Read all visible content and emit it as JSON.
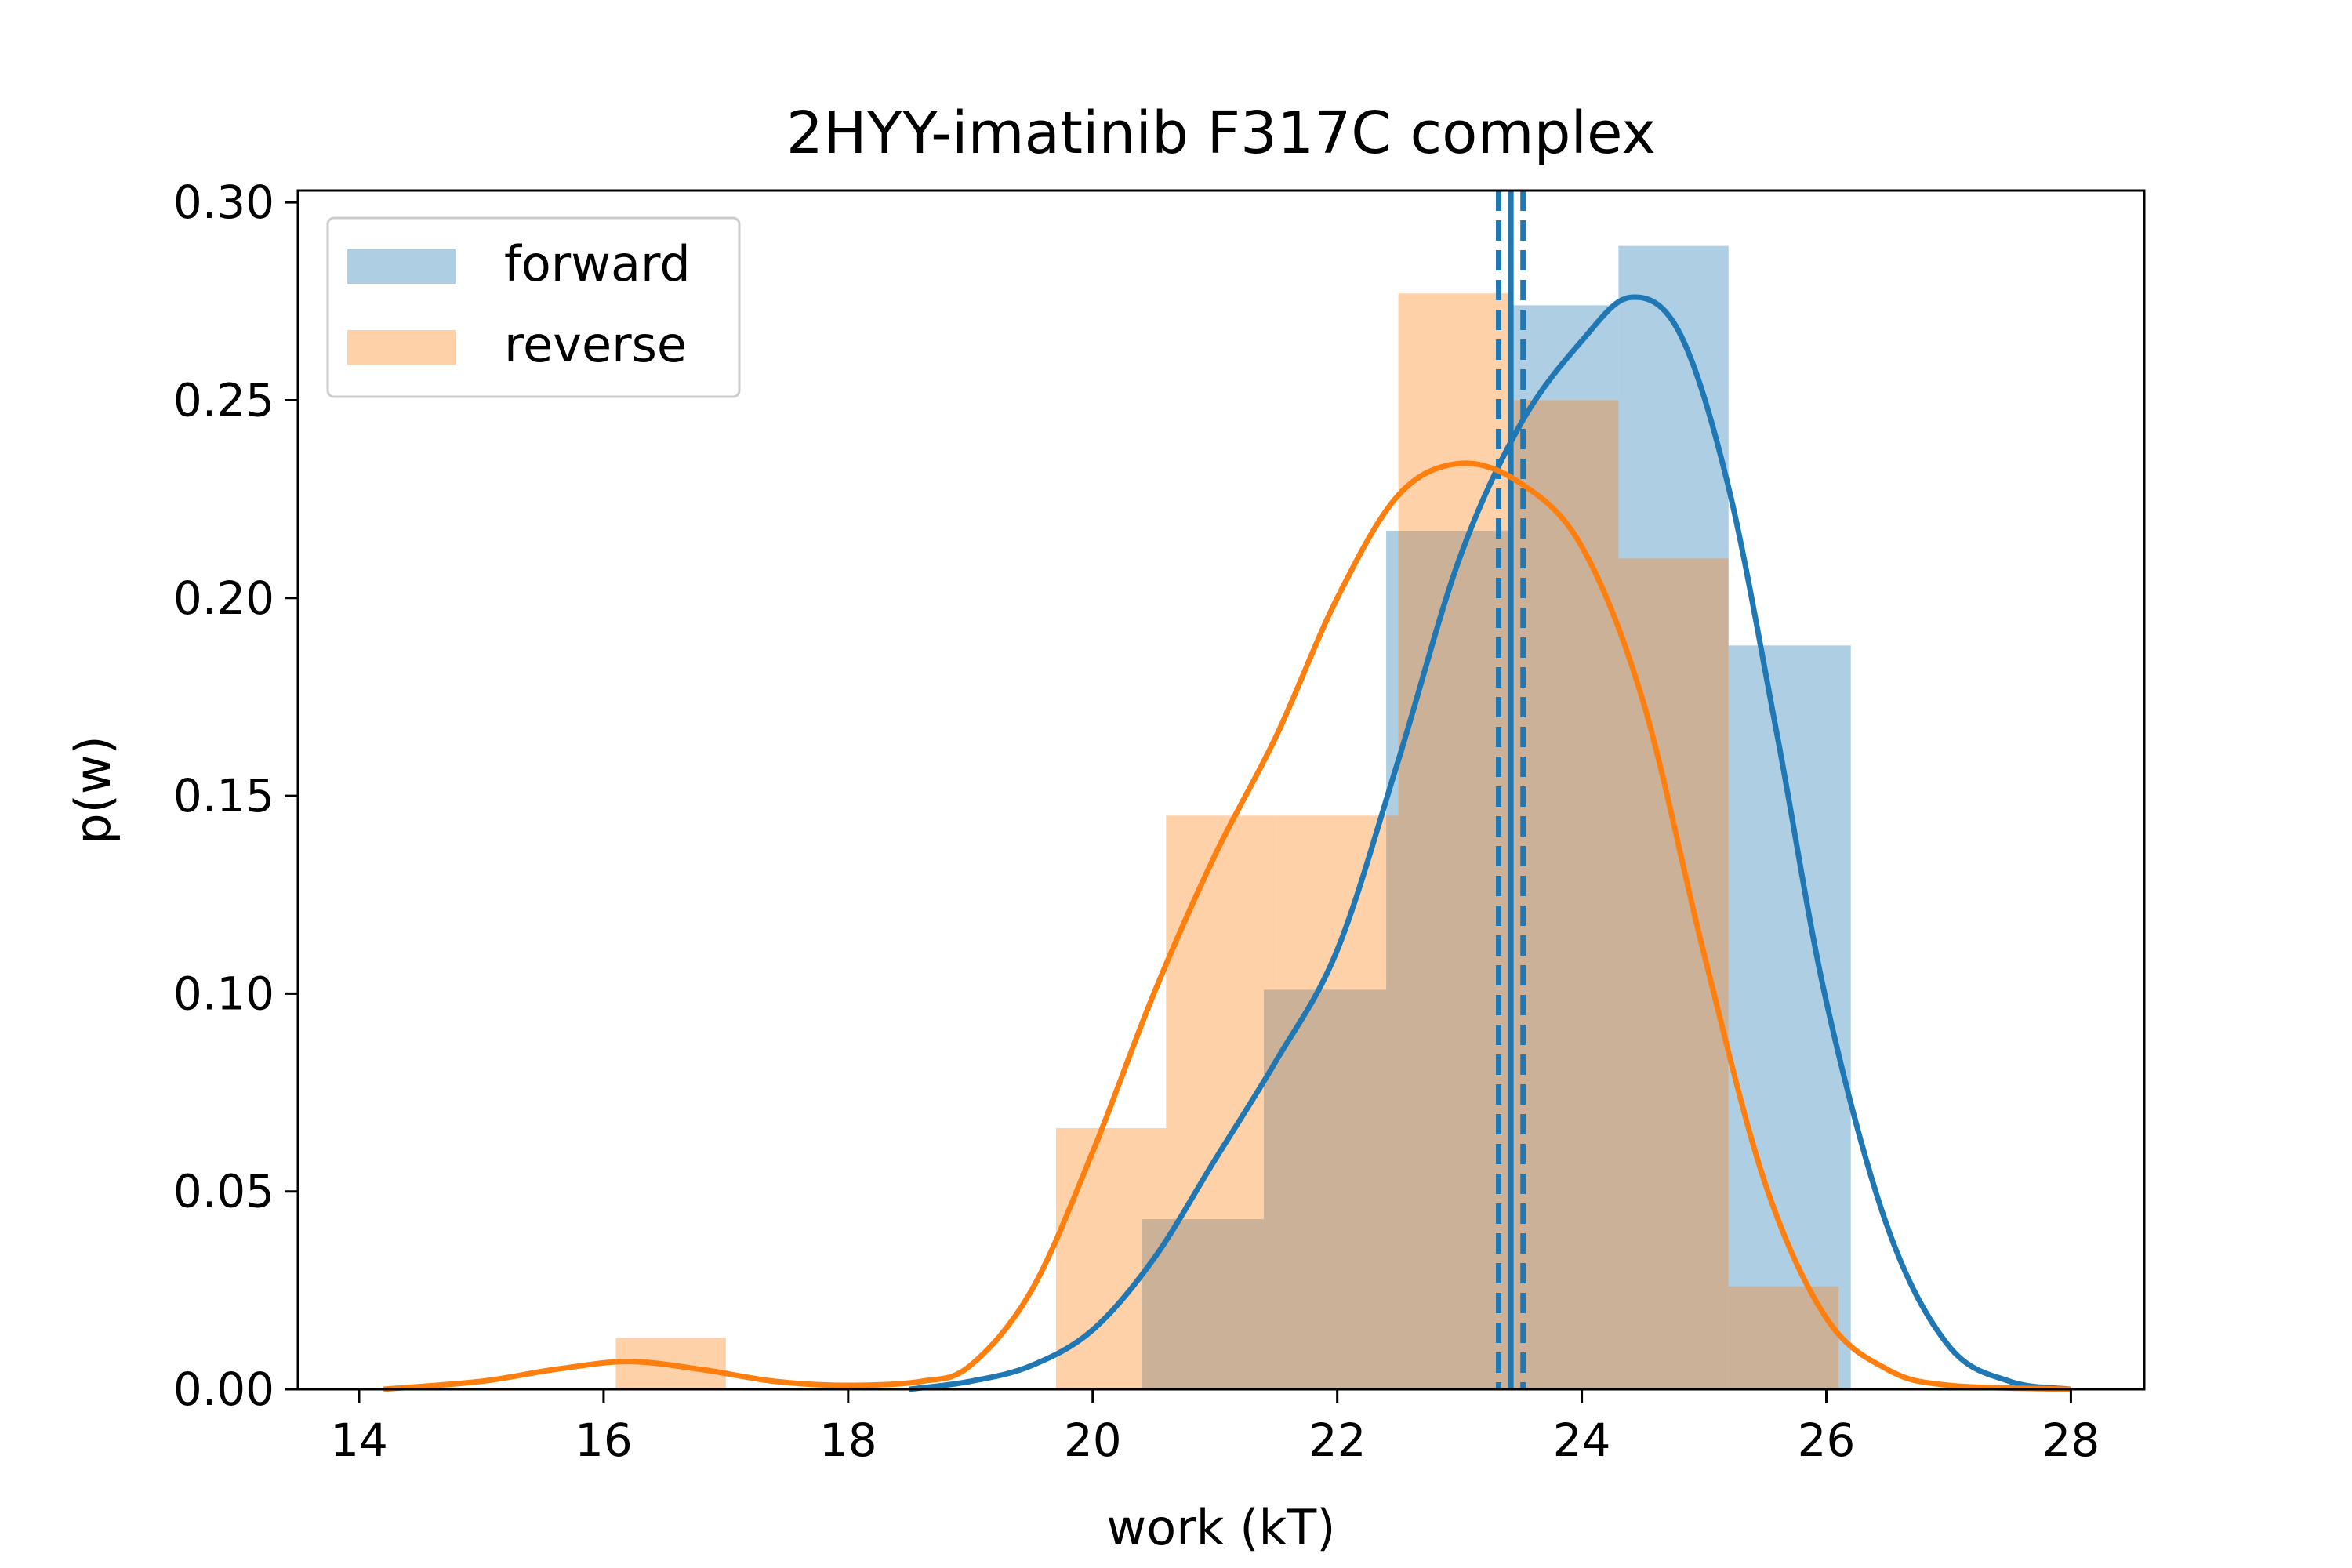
{
  "chart_data": {
    "type": "histogram",
    "title": "2HYY-imatinib F317C complex",
    "xlabel": "work (kT)",
    "ylabel": "p(w)",
    "xlim": [
      13.5,
      28.6
    ],
    "ylim": [
      0.0,
      0.303
    ],
    "xticks": [
      14,
      16,
      18,
      20,
      22,
      24,
      26,
      28
    ],
    "yticks": [
      0.0,
      0.05,
      0.1,
      0.15,
      0.2,
      0.25,
      0.3
    ],
    "xtick_labels": [
      "14",
      "16",
      "18",
      "20",
      "22",
      "24",
      "26",
      "28"
    ],
    "ytick_labels": [
      "0.00",
      "0.05",
      "0.10",
      "0.15",
      "0.20",
      "0.25",
      "0.30"
    ],
    "grid": false,
    "legend_position": "top-left",
    "series": [
      {
        "name": "forward",
        "color": "#1f77b4",
        "bar_color": "#adc9e1",
        "bins": [
          {
            "x0": 20.4,
            "x1": 21.4,
            "y": 0.043
          },
          {
            "x0": 21.4,
            "x1": 22.4,
            "y": 0.101
          },
          {
            "x0": 22.4,
            "x1": 23.4,
            "y": 0.217
          },
          {
            "x0": 23.4,
            "x1": 24.3,
            "y": 0.274
          },
          {
            "x0": 24.3,
            "x1": 25.2,
            "y": 0.289
          },
          {
            "x0": 25.2,
            "x1": 26.2,
            "y": 0.188
          }
        ],
        "kde": {
          "x": [
            18.5,
            19.0,
            19.5,
            20.0,
            20.5,
            21.0,
            21.5,
            22.0,
            22.5,
            23.0,
            23.5,
            24.0,
            24.4,
            24.8,
            25.2,
            25.6,
            26.0,
            26.5,
            27.0,
            27.5,
            28.0
          ],
          "y": [
            0.0,
            0.002,
            0.006,
            0.015,
            0.033,
            0.058,
            0.083,
            0.111,
            0.159,
            0.21,
            0.244,
            0.265,
            0.276,
            0.267,
            0.228,
            0.165,
            0.098,
            0.041,
            0.011,
            0.002,
            0.0
          ]
        },
        "vlines": [
          23.32,
          23.42,
          23.52
        ]
      },
      {
        "name": "reverse",
        "color": "#ff7f0e",
        "bar_color": "#fdca97",
        "bins": [
          {
            "x0": 16.1,
            "x1": 17.0,
            "y": 0.013
          },
          {
            "x0": 19.7,
            "x1": 20.6,
            "y": 0.066
          },
          {
            "x0": 20.6,
            "x1": 21.5,
            "y": 0.145
          },
          {
            "x0": 21.5,
            "x1": 22.5,
            "y": 0.145
          },
          {
            "x0": 22.5,
            "x1": 23.4,
            "y": 0.277
          },
          {
            "x0": 23.4,
            "x1": 24.3,
            "y": 0.25
          },
          {
            "x0": 24.3,
            "x1": 25.2,
            "y": 0.21
          },
          {
            "x0": 25.2,
            "x1": 26.1,
            "y": 0.026
          }
        ],
        "kde": {
          "x": [
            14.2,
            15.0,
            15.6,
            16.2,
            16.8,
            17.4,
            18.0,
            18.6,
            19.0,
            19.5,
            20.0,
            20.5,
            21.0,
            21.5,
            22.0,
            22.5,
            23.0,
            23.5,
            24.0,
            24.5,
            25.0,
            25.5,
            26.0,
            26.5,
            27.0,
            28.0
          ],
          "y": [
            0.0,
            0.002,
            0.005,
            0.007,
            0.005,
            0.002,
            0.001,
            0.002,
            0.006,
            0.025,
            0.06,
            0.1,
            0.135,
            0.165,
            0.2,
            0.226,
            0.234,
            0.229,
            0.213,
            0.174,
            0.11,
            0.052,
            0.018,
            0.005,
            0.001,
            0.0
          ]
        }
      }
    ]
  }
}
